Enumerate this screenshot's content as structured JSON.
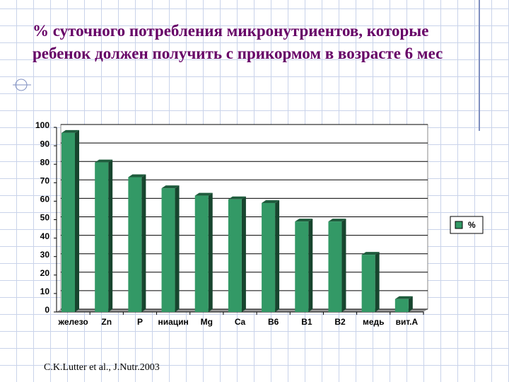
{
  "title": "% суточного потребления микронутриентов, которые ребенок должен получить с прикормом в возрасте 6 мес",
  "source": "C.K.Lutter et al., J.Nutr.2003",
  "chart_data": {
    "type": "bar",
    "categories": [
      "железо",
      "Zn",
      "P",
      "ниацин",
      "Mg",
      "Ca",
      "B6",
      "B1",
      "B2",
      "медь",
      "вит.А"
    ],
    "series": [
      {
        "name": "%",
        "color": "#339966",
        "values": [
          97,
          81,
          73,
          67,
          63,
          61,
          59,
          49,
          49,
          31,
          7
        ]
      }
    ],
    "ylim": [
      0,
      100
    ],
    "yticks": [
      0,
      10,
      20,
      30,
      40,
      50,
      60,
      70,
      80,
      90,
      100
    ],
    "grid": true,
    "legend": "right"
  }
}
